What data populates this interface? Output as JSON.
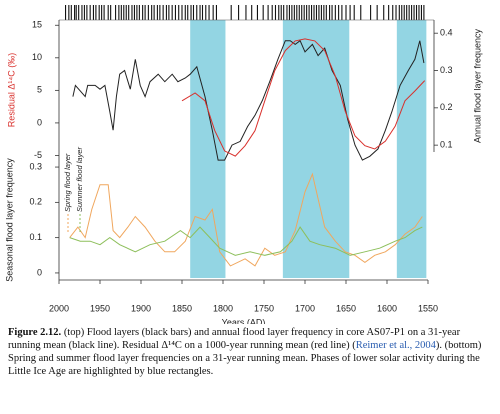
{
  "chart_data": [
    {
      "type": "line",
      "xlim": [
        2000,
        1550
      ],
      "ylim": [
        -8,
        15.5
      ],
      "yticks": [
        -5,
        0,
        5,
        10,
        15
      ],
      "y2lim": [
        0.02,
        0.43
      ],
      "y2ticks": [
        0.1,
        0.2,
        0.3,
        0.4
      ],
      "ylabel": "Residual Δ¹⁴C (‰)",
      "ylabel_color": "#d9302c",
      "y2label": "Annual flood layer frequency",
      "highlights": [
        [
          1840,
          1797
        ],
        [
          1727,
          1646
        ],
        [
          1588,
          1552
        ]
      ],
      "highlight_color": "#93d5e3",
      "flood_layers": [
        1992,
        1988,
        1985,
        1981,
        1979,
        1976,
        1972,
        1969,
        1966,
        1962,
        1958,
        1955,
        1951,
        1948,
        1945,
        1940,
        1937,
        1931,
        1927,
        1924,
        1921,
        1918,
        1915,
        1911,
        1908,
        1905,
        1902,
        1898,
        1895,
        1891,
        1887,
        1884,
        1880,
        1877,
        1873,
        1869,
        1866,
        1862,
        1858,
        1854,
        1850,
        1846,
        1843,
        1839,
        1836,
        1832,
        1828,
        1825,
        1821,
        1817,
        1812,
        1808,
        1790,
        1781,
        1772,
        1765,
        1758,
        1751,
        1745,
        1740,
        1736,
        1732,
        1729,
        1726,
        1722,
        1719,
        1716,
        1713,
        1710,
        1707,
        1704,
        1701,
        1698,
        1695,
        1692,
        1689,
        1686,
        1683,
        1680,
        1677,
        1674,
        1670,
        1667,
        1663,
        1659,
        1655,
        1650,
        1645,
        1640,
        1632,
        1620,
        1612,
        1604,
        1598,
        1593,
        1589,
        1585,
        1582,
        1579,
        1576,
        1573,
        1570,
        1567,
        1564,
        1561,
        1558,
        1555
      ],
      "series": [
        {
          "color": "#222222",
          "axis": "y2",
          "x": [
            1983,
            1980,
            1968,
            1965,
            1956,
            1950,
            1944,
            1938,
            1934,
            1930,
            1926,
            1920,
            1913,
            1907,
            1901,
            1895,
            1889,
            1879,
            1871,
            1862,
            1855,
            1846,
            1840,
            1832,
            1822,
            1813,
            1806,
            1798,
            1789,
            1779,
            1770,
            1761,
            1752,
            1743,
            1733,
            1724,
            1718,
            1712,
            1706,
            1700,
            1691,
            1684,
            1676,
            1667,
            1657,
            1648,
            1639,
            1630,
            1621,
            1611,
            1602,
            1594,
            1584,
            1574,
            1566,
            1560,
            1555
          ],
          "values": [
            0.23,
            0.26,
            0.23,
            0.26,
            0.26,
            0.25,
            0.26,
            0.19,
            0.14,
            0.23,
            0.29,
            0.3,
            0.25,
            0.33,
            0.26,
            0.23,
            0.27,
            0.29,
            0.27,
            0.29,
            0.27,
            0.28,
            0.29,
            0.31,
            0.23,
            0.14,
            0.06,
            0.06,
            0.1,
            0.11,
            0.15,
            0.18,
            0.22,
            0.27,
            0.33,
            0.38,
            0.38,
            0.37,
            0.38,
            0.35,
            0.37,
            0.34,
            0.36,
            0.3,
            0.26,
            0.17,
            0.1,
            0.06,
            0.07,
            0.09,
            0.14,
            0.19,
            0.26,
            0.3,
            0.33,
            0.38,
            0.32
          ]
        },
        {
          "color": "#d9302c",
          "x": [
            1850,
            1834,
            1822,
            1810,
            1798,
            1785,
            1773,
            1761,
            1749,
            1737,
            1724,
            1712,
            1700,
            1688,
            1676,
            1663,
            1651,
            1639,
            1627,
            1615,
            1602,
            1590,
            1578,
            1566,
            1554
          ],
          "values": [
            3.4,
            4.6,
            3.4,
            -1.2,
            -4.3,
            -5.1,
            -3.5,
            -1.2,
            3.4,
            8.0,
            11.1,
            12.6,
            12.9,
            12.6,
            11.1,
            7.2,
            1.8,
            -2.0,
            -3.5,
            -4.0,
            -2.8,
            -0.5,
            3.4,
            4.9,
            6.5
          ]
        }
      ]
    },
    {
      "type": "line",
      "xlim": [
        2000,
        1550
      ],
      "xticks": [
        2000,
        1950,
        1900,
        1850,
        1800,
        1750,
        1700,
        1650,
        1600,
        1550
      ],
      "xlabel": "Years (AD)",
      "ylim": [
        -0.02,
        0.32
      ],
      "yticks": [
        0,
        0.1,
        0.2,
        0.3
      ],
      "ylabel": "Seasonal flood layer frequency",
      "series": [
        {
          "name": "Spring flood layer",
          "color": "#f0a75e",
          "x": [
            1987,
            1977,
            1968,
            1960,
            1950,
            1940,
            1934,
            1926,
            1916,
            1907,
            1895,
            1883,
            1871,
            1859,
            1846,
            1834,
            1822,
            1813,
            1804,
            1791,
            1773,
            1761,
            1749,
            1737,
            1724,
            1712,
            1700,
            1691,
            1684,
            1676,
            1663,
            1651,
            1639,
            1627,
            1615,
            1602,
            1590,
            1578,
            1566,
            1557
          ],
          "values": [
            0.1,
            0.13,
            0.1,
            0.18,
            0.25,
            0.25,
            0.12,
            0.1,
            0.13,
            0.16,
            0.13,
            0.09,
            0.06,
            0.06,
            0.09,
            0.16,
            0.15,
            0.18,
            0.06,
            0.02,
            0.04,
            0.02,
            0.07,
            0.05,
            0.06,
            0.12,
            0.23,
            0.28,
            0.21,
            0.13,
            0.09,
            0.06,
            0.05,
            0.03,
            0.05,
            0.06,
            0.08,
            0.11,
            0.13,
            0.16
          ]
        },
        {
          "name": "Summer flood layer",
          "color": "#8dbf5b",
          "x": [
            1987,
            1974,
            1962,
            1950,
            1938,
            1926,
            1907,
            1889,
            1871,
            1852,
            1840,
            1828,
            1816,
            1804,
            1785,
            1767,
            1749,
            1730,
            1716,
            1706,
            1694,
            1682,
            1663,
            1645,
            1627,
            1609,
            1590,
            1578,
            1566,
            1557
          ],
          "values": [
            0.1,
            0.09,
            0.09,
            0.08,
            0.1,
            0.08,
            0.06,
            0.08,
            0.09,
            0.12,
            0.1,
            0.13,
            0.1,
            0.07,
            0.05,
            0.06,
            0.05,
            0.06,
            0.09,
            0.13,
            0.09,
            0.08,
            0.07,
            0.05,
            0.06,
            0.07,
            0.09,
            0.1,
            0.12,
            0.13
          ]
        }
      ]
    }
  ],
  "caption": {
    "label": "Figure 2.12.",
    "text_before": "(top) Flood layers (black bars) and annual flood layer frequency in core AS07-P1 on a 31-year running mean (black line). Residual Δ¹⁴C on a 1000-year running mean (red line) (",
    "reference": "Reimer et al., 2004",
    "text_after": "). (bottom) Spring and summer flood layer frequencies on a 31-year running mean. Phases of lower solar activity during the Little Ice Age are highlighted by blue rectangles."
  }
}
